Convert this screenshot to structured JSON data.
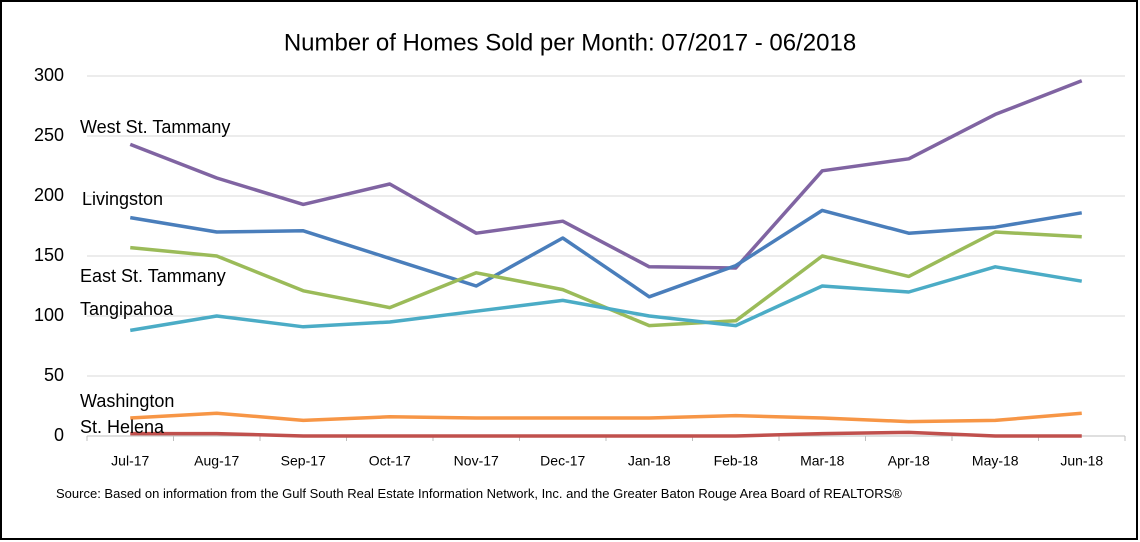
{
  "chart_data": {
    "type": "line",
    "title": "Number of Homes Sold per Month: 07/2017 - 06/2018",
    "categories": [
      "Jul-17",
      "Aug-17",
      "Sep-17",
      "Oct-17",
      "Nov-17",
      "Dec-17",
      "Jan-18",
      "Feb-18",
      "Mar-18",
      "Apr-18",
      "May-18",
      "Jun-18"
    ],
    "series": [
      {
        "name": "West St. Tammany",
        "color": "#8064a2",
        "values": [
          243,
          215,
          193,
          210,
          169,
          179,
          141,
          140,
          221,
          231,
          268,
          296
        ]
      },
      {
        "name": "Livingston",
        "color": "#4a7ebb",
        "values": [
          182,
          170,
          171,
          148,
          125,
          165,
          116,
          142,
          188,
          169,
          174,
          186
        ]
      },
      {
        "name": "East St. Tammany",
        "color": "#9bbb59",
        "values": [
          157,
          150,
          121,
          107,
          136,
          122,
          92,
          96,
          150,
          133,
          170,
          166
        ]
      },
      {
        "name": "Tangipahoa",
        "color": "#4bacc6",
        "values": [
          88,
          100,
          91,
          95,
          104,
          113,
          100,
          92,
          125,
          120,
          141,
          129
        ]
      },
      {
        "name": "Washington",
        "color": "#f79646",
        "values": [
          15,
          19,
          13,
          16,
          15,
          15,
          15,
          17,
          15,
          12,
          13,
          19
        ]
      },
      {
        "name": "St. Helena",
        "color": "#c0504d",
        "values": [
          2,
          2,
          0,
          0,
          0,
          0,
          0,
          0,
          2,
          3,
          0,
          0
        ]
      }
    ],
    "ylim": [
      0,
      300
    ],
    "yticks": [
      0,
      50,
      100,
      150,
      200,
      250,
      300
    ],
    "grid": true,
    "source": "Source: Based on information from the Gulf South Real Estate Information Network, Inc. and the Greater Baton Rouge Area Board of REALTORS®"
  }
}
